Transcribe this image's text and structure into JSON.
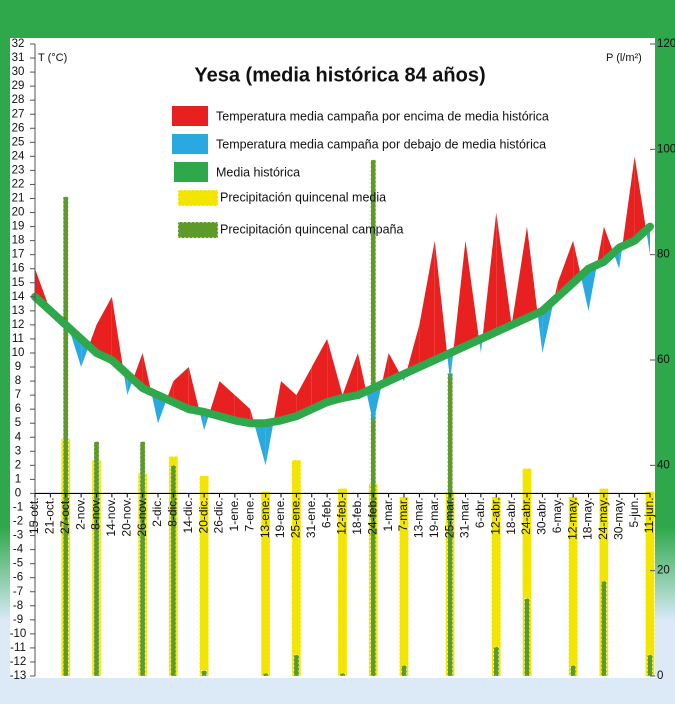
{
  "chart_data": {
    "type": "combo",
    "title": "Yesa (media histórica 84 años)",
    "ylabel": "T (°C)",
    "y2label": "P (l/m²)",
    "categories": [
      "15-oct.",
      "21-oct.",
      "27-oct.",
      "2-nov.",
      "8-nov.",
      "14-nov.",
      "20-nov.",
      "26-nov.",
      "2-dic.",
      "8-dic.",
      "14-dic.",
      "20-dic.",
      "26-dic.",
      "1-ene.",
      "7-ene.",
      "13-ene.",
      "19-ene.",
      "25-ene.",
      "31-ene.",
      "6-feb.",
      "12-feb.",
      "18-feb.",
      "24-feb.",
      "1-mar.",
      "7-mar.",
      "13-mar.",
      "19-mar.",
      "25-mar.",
      "31-mar.",
      "6-abr.",
      "12-abr.",
      "18-abr.",
      "24-abr.",
      "30-abr.",
      "6-may.",
      "12-may.",
      "18-may.",
      "24-may.",
      "30-may.",
      "5-jun.",
      "11-jun."
    ],
    "series": [
      {
        "name": "Media histórica",
        "color": "#2ea84a",
        "values": [
          14,
          13,
          12,
          11,
          10,
          9.5,
          8.5,
          7.5,
          7,
          6.5,
          6,
          5.8,
          5.5,
          5.2,
          5,
          5,
          5.2,
          5.5,
          6,
          6.5,
          6.8,
          7,
          7.5,
          8,
          8.5,
          9,
          9.5,
          10,
          10.5,
          11,
          11.5,
          12,
          12.5,
          13,
          14,
          15,
          16,
          16.5,
          17.5,
          18,
          19
        ]
      },
      {
        "name": "Temperatura media campaña por encima de media histórica",
        "color": "#e8201f",
        "name_below": "Temperatura media campaña por debajo de media histórica",
        "color_below": "#2aa9e0",
        "values": [
          16,
          13,
          12.5,
          9,
          12,
          14,
          7,
          10,
          5,
          8,
          9,
          4.5,
          8,
          7,
          6,
          2,
          8,
          7,
          9,
          11,
          7,
          10,
          5,
          10,
          8,
          12,
          18,
          8,
          18,
          10,
          20,
          12,
          19,
          10,
          15,
          18,
          13,
          19,
          16,
          24,
          17
        ]
      },
      {
        "name": "Precipitación quincenal media",
        "color": "#f2e600",
        "axis": "y2",
        "values": [
          null,
          null,
          45,
          null,
          41,
          null,
          null,
          38.5,
          null,
          41.7,
          null,
          38,
          null,
          null,
          null,
          35,
          null,
          41,
          null,
          null,
          35.6,
          null,
          36.5,
          null,
          34,
          null,
          null,
          35,
          null,
          null,
          34,
          null,
          39.4,
          null,
          null,
          34,
          null,
          35.6,
          null,
          null,
          35
        ]
      },
      {
        "name": "Precipitación quincenal campaña",
        "color": "#5e9a2a",
        "axis": "y2",
        "values": [
          null,
          null,
          91,
          null,
          44.5,
          null,
          null,
          44.5,
          null,
          40,
          null,
          1,
          null,
          null,
          null,
          0.5,
          null,
          4,
          null,
          null,
          0.5,
          null,
          98,
          null,
          2,
          null,
          null,
          57.5,
          null,
          null,
          5.5,
          null,
          14.7,
          null,
          null,
          2,
          null,
          18,
          null,
          null,
          4
        ]
      }
    ],
    "ylim": [
      -13,
      32
    ],
    "yticks": [
      -13,
      -12,
      -11,
      -10,
      -9,
      -8,
      -7,
      -6,
      -5,
      -4,
      -3,
      -2,
      -1,
      0,
      1,
      2,
      3,
      4,
      5,
      6,
      7,
      8,
      9,
      10,
      11,
      12,
      13,
      14,
      15,
      16,
      17,
      18,
      19,
      20,
      21,
      22,
      23,
      24,
      25,
      26,
      27,
      28,
      29,
      30,
      31,
      32
    ],
    "y2lim": [
      0,
      120
    ],
    "y2ticks": [
      0,
      20,
      40,
      60,
      80,
      100,
      120
    ]
  }
}
